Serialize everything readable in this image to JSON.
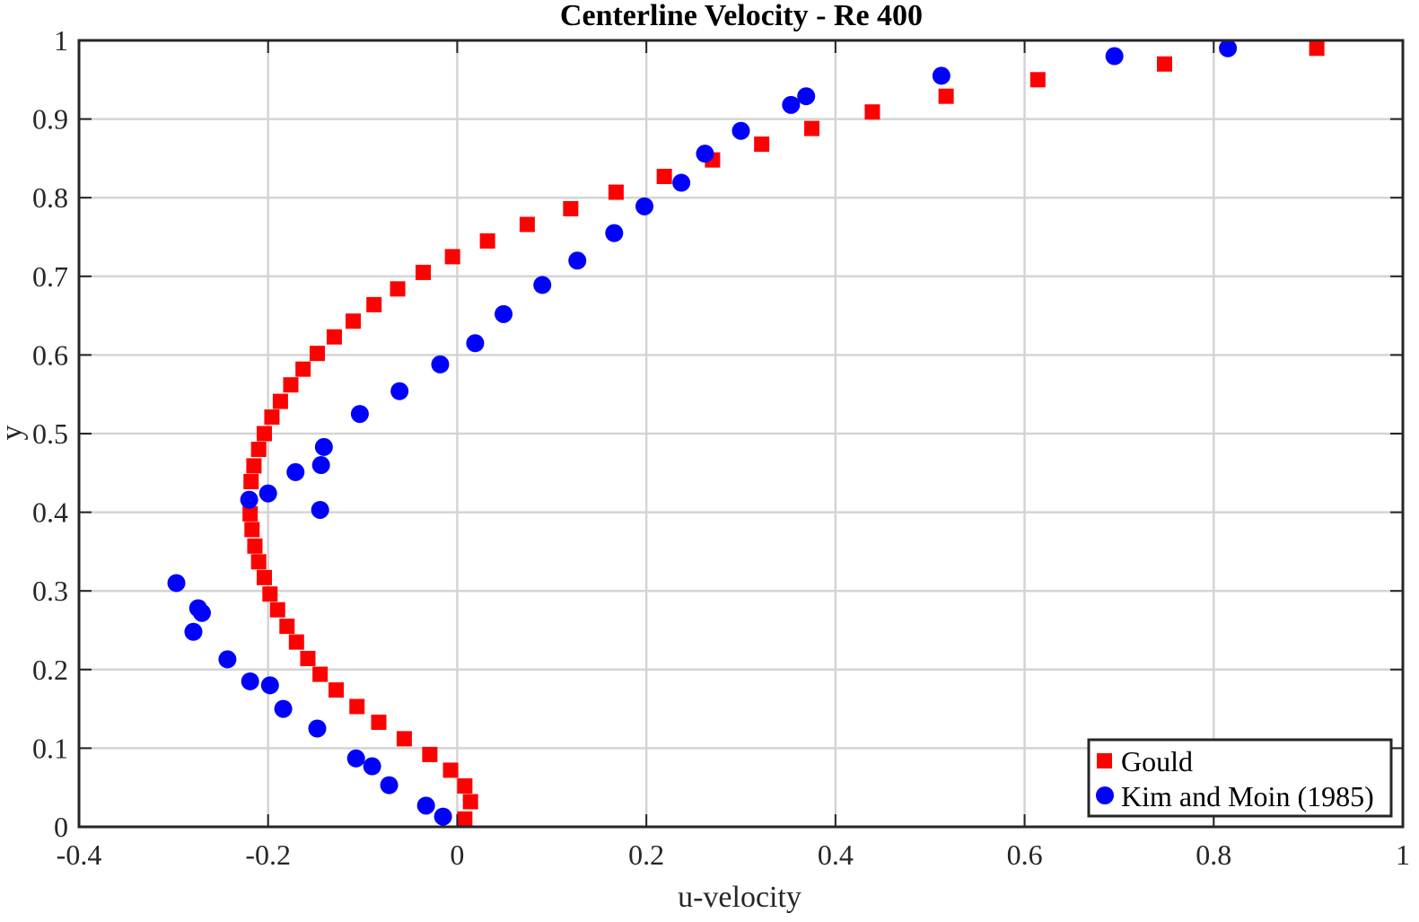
{
  "chart_data": {
    "type": "scatter",
    "title": "Centerline Velocity - Re 400",
    "xlabel": "u-velocity",
    "ylabel": "y",
    "xlim": [
      -0.4,
      1.0
    ],
    "ylim": [
      0,
      1.0
    ],
    "xticks": [
      "-0.4",
      "-0.2",
      "0",
      "0.2",
      "0.4",
      "0.6",
      "0.8",
      "1"
    ],
    "yticks": [
      "0",
      "0.1",
      "0.2",
      "0.3",
      "0.4",
      "0.5",
      "0.6",
      "0.7",
      "0.8",
      "0.9",
      "1"
    ],
    "grid": true,
    "legend_position": "bottom-right",
    "series": [
      {
        "name": "Gould",
        "marker": "square",
        "color": "#ff0000",
        "points": [
          [
            0.008,
            0.01
          ],
          [
            0.014,
            0.032
          ],
          [
            0.008,
            0.052
          ],
          [
            -0.007,
            0.072
          ],
          [
            -0.029,
            0.092
          ],
          [
            -0.056,
            0.112
          ],
          [
            -0.083,
            0.133
          ],
          [
            -0.106,
            0.153
          ],
          [
            -0.128,
            0.174
          ],
          [
            -0.145,
            0.194
          ],
          [
            -0.158,
            0.214
          ],
          [
            -0.17,
            0.235
          ],
          [
            -0.18,
            0.255
          ],
          [
            -0.19,
            0.276
          ],
          [
            -0.198,
            0.296
          ],
          [
            -0.204,
            0.317
          ],
          [
            -0.21,
            0.337
          ],
          [
            -0.214,
            0.357
          ],
          [
            -0.217,
            0.378
          ],
          [
            -0.219,
            0.398
          ],
          [
            -0.218,
            0.439
          ],
          [
            -0.215,
            0.459
          ],
          [
            -0.21,
            0.48
          ],
          [
            -0.204,
            0.5
          ],
          [
            -0.196,
            0.521
          ],
          [
            -0.187,
            0.541
          ],
          [
            -0.176,
            0.562
          ],
          [
            -0.163,
            0.582
          ],
          [
            -0.148,
            0.602
          ],
          [
            -0.13,
            0.623
          ],
          [
            -0.11,
            0.643
          ],
          [
            -0.088,
            0.664
          ],
          [
            -0.063,
            0.684
          ],
          [
            -0.036,
            0.705
          ],
          [
            -0.005,
            0.725
          ],
          [
            0.032,
            0.745
          ],
          [
            0.074,
            0.766
          ],
          [
            0.12,
            0.786
          ],
          [
            0.168,
            0.807
          ],
          [
            0.219,
            0.827
          ],
          [
            0.27,
            0.848
          ],
          [
            0.322,
            0.868
          ],
          [
            0.375,
            0.888
          ],
          [
            0.439,
            0.909
          ],
          [
            0.517,
            0.929
          ],
          [
            0.614,
            0.95
          ],
          [
            0.748,
            0.97
          ],
          [
            0.909,
            0.99
          ]
        ]
      },
      {
        "name": "Kim and Moin (1985)",
        "marker": "circle",
        "color": "#0000ff",
        "points": [
          [
            -0.015,
            0.013
          ],
          [
            -0.033,
            0.027
          ],
          [
            -0.072,
            0.053
          ],
          [
            -0.09,
            0.077
          ],
          [
            -0.107,
            0.087
          ],
          [
            -0.148,
            0.125
          ],
          [
            -0.184,
            0.15
          ],
          [
            -0.198,
            0.18
          ],
          [
            -0.219,
            0.185
          ],
          [
            -0.243,
            0.213
          ],
          [
            -0.279,
            0.248
          ],
          [
            -0.27,
            0.272
          ],
          [
            -0.274,
            0.278
          ],
          [
            -0.297,
            0.31
          ],
          [
            -0.145,
            0.403
          ],
          [
            -0.22,
            0.416
          ],
          [
            -0.2,
            0.424
          ],
          [
            -0.171,
            0.451
          ],
          [
            -0.144,
            0.46
          ],
          [
            -0.141,
            0.483
          ],
          [
            -0.103,
            0.525
          ],
          [
            -0.061,
            0.554
          ],
          [
            -0.018,
            0.588
          ],
          [
            0.019,
            0.615
          ],
          [
            0.049,
            0.652
          ],
          [
            0.09,
            0.689
          ],
          [
            0.127,
            0.72
          ],
          [
            0.166,
            0.755
          ],
          [
            0.198,
            0.789
          ],
          [
            0.237,
            0.819
          ],
          [
            0.262,
            0.856
          ],
          [
            0.3,
            0.885
          ],
          [
            0.353,
            0.918
          ],
          [
            0.369,
            0.929
          ],
          [
            0.512,
            0.955
          ],
          [
            0.695,
            0.98
          ],
          [
            0.815,
            0.99
          ]
        ]
      }
    ]
  }
}
